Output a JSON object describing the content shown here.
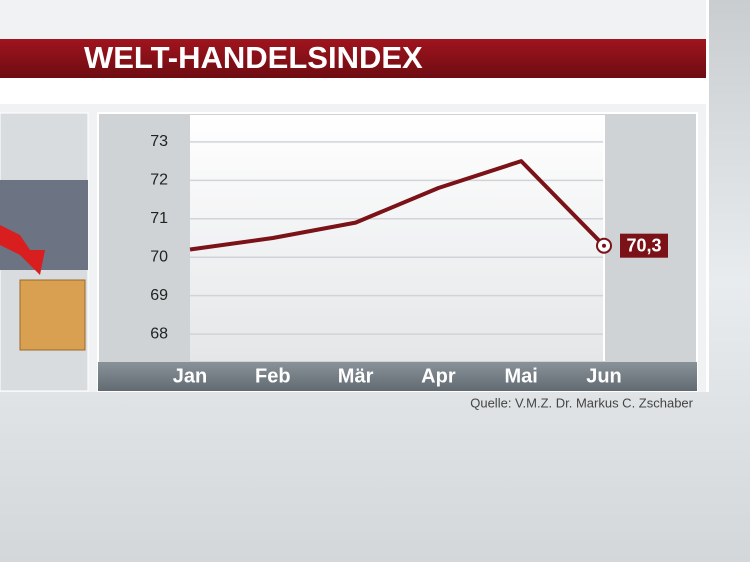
{
  "chart_data": {
    "type": "line",
    "title": "WELT-HANDELSINDEX",
    "categories": [
      "Jan",
      "Feb",
      "Mär",
      "Apr",
      "Mai",
      "Jun"
    ],
    "series": [
      {
        "color": "#7a1218",
        "values": [
          70.2,
          70.5,
          70.9,
          71.8,
          72.5,
          70.3
        ],
        "value_labels": [
          null,
          null,
          null,
          null,
          null,
          "70,3"
        ]
      }
    ],
    "ylim": [
      67.3,
      73.7
    ],
    "yticks": [
      68,
      69,
      70,
      71,
      72,
      73
    ],
    "grid": true,
    "source": "Quelle: V.M.Z. Dr. Markus C. Zschaber"
  }
}
